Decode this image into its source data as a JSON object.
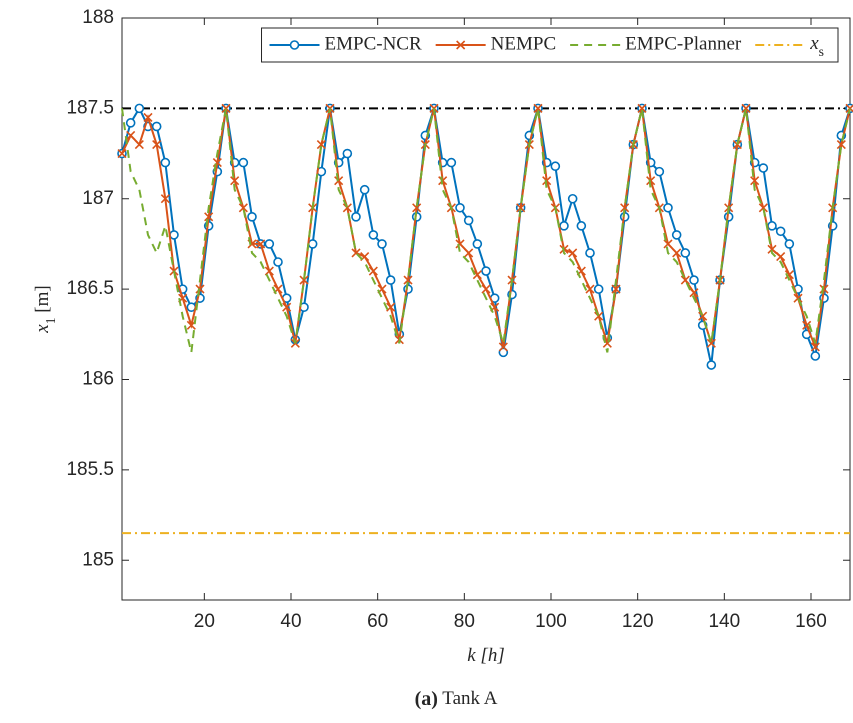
{
  "chart_data": {
    "type": "line",
    "caption": "(a) Tank A",
    "xlabel": "k [h]",
    "ylabel": "x_1 [m]",
    "xlim": [
      1,
      169
    ],
    "ylim": [
      184.78,
      188
    ],
    "xticks": [
      20,
      40,
      60,
      80,
      100,
      120,
      140,
      160
    ],
    "yticks": [
      185,
      185.5,
      186,
      186.5,
      187,
      187.5,
      188
    ],
    "grid": false,
    "legend": "upper right",
    "reference_line": {
      "value": 187.5,
      "color": "#000000"
    },
    "x": [
      1,
      3,
      5,
      7,
      9,
      11,
      13,
      15,
      17,
      19,
      21,
      23,
      25,
      27,
      29,
      31,
      33,
      35,
      37,
      39,
      41,
      43,
      45,
      47,
      49,
      51,
      53,
      55,
      57,
      59,
      61,
      63,
      65,
      67,
      69,
      71,
      73,
      75,
      77,
      79,
      81,
      83,
      85,
      87,
      89,
      91,
      93,
      95,
      97,
      99,
      101,
      103,
      105,
      107,
      109,
      111,
      113,
      115,
      117,
      119,
      121,
      123,
      125,
      127,
      129,
      131,
      133,
      135,
      137,
      139,
      141,
      143,
      145,
      147,
      149,
      151,
      153,
      155,
      157,
      159,
      161,
      163,
      165,
      167,
      169
    ],
    "series": [
      {
        "name": "EMPC-NCR",
        "color": "#0072BD",
        "marker": "circle",
        "style": "solid",
        "values": [
          187.25,
          187.42,
          187.5,
          187.4,
          187.4,
          187.2,
          186.8,
          186.5,
          186.4,
          186.45,
          186.85,
          187.15,
          187.5,
          187.2,
          187.2,
          186.9,
          186.75,
          186.75,
          186.65,
          186.45,
          186.22,
          186.4,
          186.75,
          187.15,
          187.5,
          187.2,
          187.25,
          186.9,
          187.05,
          186.8,
          186.75,
          186.55,
          186.25,
          186.5,
          186.9,
          187.35,
          187.5,
          187.2,
          187.2,
          186.95,
          186.88,
          186.75,
          186.6,
          186.45,
          186.15,
          186.47,
          186.95,
          187.35,
          187.5,
          187.2,
          187.18,
          186.85,
          187.0,
          186.85,
          186.7,
          186.5,
          186.23,
          186.5,
          186.9,
          187.3,
          187.5,
          187.2,
          187.15,
          186.95,
          186.8,
          186.7,
          186.55,
          186.3,
          186.08,
          186.55,
          186.9,
          187.3,
          187.5,
          187.2,
          187.17,
          186.85,
          186.82,
          186.75,
          186.5,
          186.25,
          186.13,
          186.45,
          186.85,
          187.35,
          187.5
        ]
      },
      {
        "name": "NEMPC",
        "color": "#D95319",
        "marker": "x",
        "style": "solid",
        "values": [
          187.25,
          187.35,
          187.3,
          187.45,
          187.3,
          187.0,
          186.6,
          186.45,
          186.3,
          186.5,
          186.9,
          187.2,
          187.5,
          187.1,
          186.95,
          186.75,
          186.75,
          186.6,
          186.5,
          186.4,
          186.2,
          186.55,
          186.95,
          187.3,
          187.5,
          187.1,
          186.95,
          186.7,
          186.68,
          186.6,
          186.5,
          186.4,
          186.22,
          186.55,
          186.95,
          187.3,
          187.5,
          187.1,
          186.95,
          186.75,
          186.7,
          186.58,
          186.5,
          186.4,
          186.18,
          186.55,
          186.95,
          187.3,
          187.5,
          187.1,
          186.95,
          186.72,
          186.7,
          186.6,
          186.5,
          186.35,
          186.2,
          186.5,
          186.95,
          187.3,
          187.5,
          187.1,
          186.95,
          186.75,
          186.7,
          186.55,
          186.48,
          186.35,
          186.2,
          186.55,
          186.95,
          187.3,
          187.5,
          187.1,
          186.95,
          186.72,
          186.68,
          186.58,
          186.45,
          186.3,
          186.18,
          186.5,
          186.95,
          187.3,
          187.5
        ]
      },
      {
        "name": "EMPC-Planner",
        "color": "#77AC30",
        "marker": "none",
        "style": "dashed",
        "values": [
          187.5,
          187.15,
          187.05,
          186.8,
          186.7,
          186.85,
          186.6,
          186.35,
          186.15,
          186.55,
          186.95,
          187.25,
          187.5,
          187.05,
          186.95,
          186.7,
          186.65,
          186.55,
          186.45,
          186.35,
          186.2,
          186.55,
          186.95,
          187.3,
          187.5,
          187.05,
          186.95,
          186.7,
          186.65,
          186.55,
          186.45,
          186.35,
          186.2,
          186.55,
          186.95,
          187.3,
          187.5,
          187.05,
          186.95,
          186.7,
          186.65,
          186.55,
          186.45,
          186.35,
          186.2,
          186.55,
          186.95,
          187.3,
          187.5,
          187.05,
          186.95,
          186.7,
          186.65,
          186.55,
          186.45,
          186.35,
          186.15,
          186.55,
          186.95,
          187.3,
          187.5,
          187.05,
          186.95,
          186.7,
          186.65,
          186.55,
          186.45,
          186.35,
          186.2,
          186.55,
          186.95,
          187.3,
          187.5,
          187.05,
          186.95,
          186.7,
          186.65,
          186.55,
          186.45,
          186.35,
          186.2,
          186.55,
          186.95,
          187.3,
          187.5
        ]
      },
      {
        "name": "x_s",
        "color": "#EDB120",
        "marker": "none",
        "style": "dashdot",
        "x": [
          1,
          169
        ],
        "values": [
          185.15,
          185.15
        ]
      }
    ]
  }
}
